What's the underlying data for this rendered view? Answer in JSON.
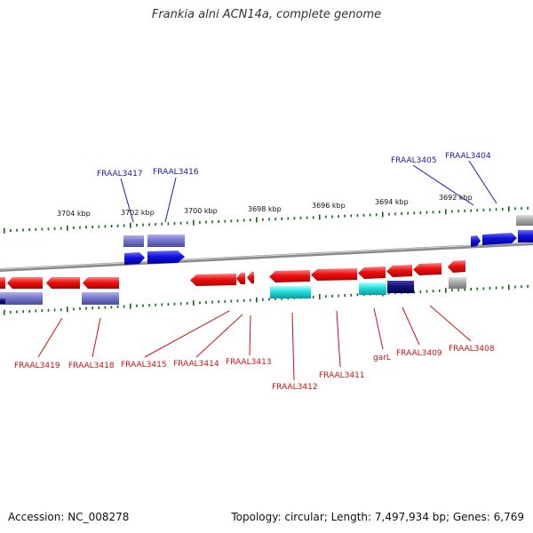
{
  "title": "Frankia alni ACN14a, complete genome",
  "accession": "Accession: NC_008278",
  "summary": "Topology: circular; Length: 7,497,934 bp; Genes: 6,769",
  "colors": {
    "red": "#ee1111",
    "blue": "#1111dd",
    "lavender": "#7777cc",
    "cyan": "#22dddd",
    "navy": "#11117a",
    "gray": "#aaaaaa",
    "tick": "#116611",
    "backbone": "#8a8a8a",
    "label_top": "#1a1aa6",
    "label_bottom": "#cc1111"
  },
  "scale_labels": [
    "3704 kbp",
    "3702 kbp",
    "3700 kbp",
    "3698 kbp",
    "3696 kbp",
    "3694 kbp",
    "3692 kbp"
  ],
  "top_labels": [
    "FRAAL3417",
    "FRAAL3416",
    "FRAAL3405",
    "FRAAL3404"
  ],
  "bottom_labels": [
    "FRAAL3419",
    "FRAAL3418",
    "FRAAL3415",
    "FRAAL3414",
    "FRAAL3413",
    "FRAAL3412",
    "FRAAL3411",
    "garL",
    "FRAAL3409",
    "FRAAL3408"
  ]
}
